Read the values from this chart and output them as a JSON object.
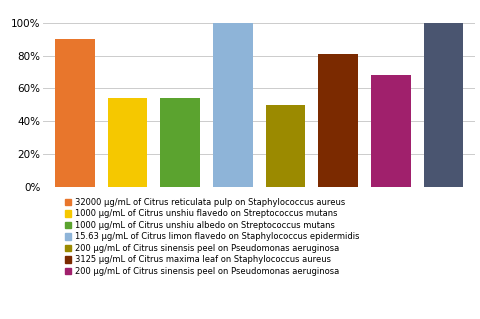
{
  "values": [
    90,
    54,
    54,
    100,
    50,
    81,
    68,
    100
  ],
  "colors": [
    "#E8762C",
    "#F5C800",
    "#5BA32F",
    "#8EB4D8",
    "#9B8A00",
    "#7B2A00",
    "#A0206C",
    "#4A5570"
  ],
  "legend_labels": [
    "32000 μg/mL of Citrus reticulata pulp on Staphylococcus aureus",
    "1000 μg/mL of Citrus unshiu flavedo on Streptococcus mutans",
    "1000 μg/mL of Citrus unshiu albedo on Streptococcus mutans",
    "15.63 μg/mL of Citrus limon flavedo on Staphylococcus epidermidis",
    "200 μg/mL of Citrus sinensis peel on Pseudomonas aeruginosa",
    "3125 μg/mL of Citrus maxima leaf on Staphylococcus aureus",
    "200 μg/mL of Citrus sinensis peel on Pseudomonas aeruginosa"
  ],
  "legend_colors": [
    "#E8762C",
    "#F5C800",
    "#5BA32F",
    "#8EB4D8",
    "#9B8A00",
    "#7B2A00",
    "#A0206C"
  ],
  "yticks": [
    0,
    20,
    40,
    60,
    80,
    100
  ],
  "yticklabels": [
    "0%",
    "20%",
    "40%",
    "60%",
    "80%",
    "100%"
  ],
  "background_color": "#FFFFFF",
  "grid_color": "#CCCCCC",
  "legend_fontsize": 6.0,
  "bar_width": 0.75
}
